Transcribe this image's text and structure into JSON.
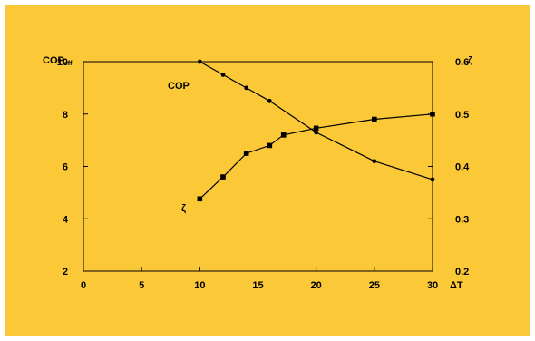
{
  "chart_data": {
    "type": "line",
    "background_color": "#FBC937",
    "line_color": "#000000",
    "left_axis": {
      "title": "COP",
      "title_sub": "eff",
      "ylim": [
        2,
        10
      ],
      "ticks": [
        2,
        4,
        6,
        8,
        10
      ]
    },
    "right_axis": {
      "title": "ζ",
      "ylim": [
        0.2,
        0.6
      ],
      "ticks": [
        "0.2",
        "0.3",
        "0.4",
        "0.5",
        "0.6"
      ]
    },
    "x_axis": {
      "title": "ΔT",
      "xlim": [
        0,
        30
      ],
      "ticks": [
        0,
        5,
        10,
        15,
        20,
        25,
        30
      ]
    },
    "series": [
      {
        "name": "COP",
        "axis": "left",
        "marker": "circle",
        "x": [
          10,
          12,
          14,
          16,
          20,
          25,
          30
        ],
        "y": [
          10,
          9.5,
          9.0,
          8.5,
          7.3,
          6.2,
          5.5
        ]
      },
      {
        "name": "ζ",
        "axis": "right",
        "marker": "square",
        "x": [
          10,
          12,
          14,
          16,
          17.2,
          20,
          25,
          30
        ],
        "y": [
          0.338,
          0.38,
          0.425,
          0.44,
          0.46,
          0.473,
          0.49,
          0.5
        ]
      }
    ]
  }
}
